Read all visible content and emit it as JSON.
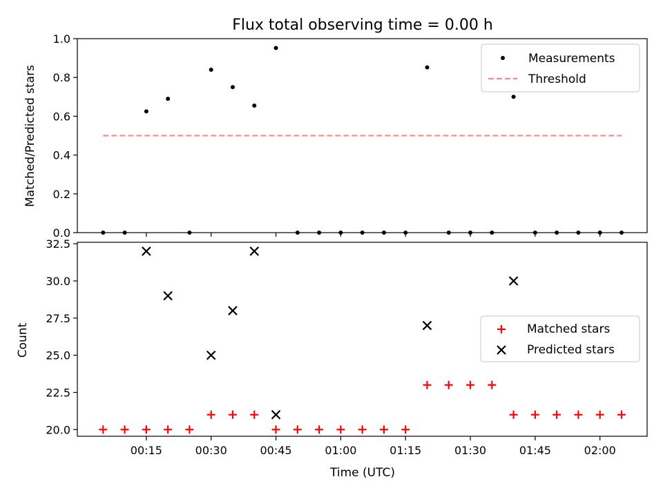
{
  "chart_data": [
    {
      "type": "scatter",
      "title": "Flux total observing time = 0.00 h",
      "xlabel": "",
      "ylabel": "Matched/Predicted stars",
      "ylim": [
        0,
        1.0
      ],
      "yticks": [
        "0.0",
        "0.2",
        "0.4",
        "0.6",
        "0.8",
        "1.0"
      ],
      "x": [
        "00:05",
        "00:10",
        "00:15",
        "00:20",
        "00:25",
        "00:30",
        "00:35",
        "00:40",
        "00:45",
        "00:50",
        "00:55",
        "01:00",
        "01:05",
        "01:10",
        "01:15",
        "01:20",
        "01:25",
        "01:30",
        "01:35",
        "01:40",
        "01:45",
        "01:50",
        "01:55",
        "02:00",
        "02:05"
      ],
      "series": [
        {
          "name": "Measurements",
          "color": "#000000",
          "marker": "dot",
          "values": [
            0,
            0,
            0.625,
            0.69,
            0,
            0.84,
            0.75,
            0.655,
            0.952,
            0,
            0,
            0,
            0,
            0,
            0,
            0.852,
            0,
            0,
            0,
            0.7,
            0,
            0,
            0,
            0,
            0
          ]
        },
        {
          "name": "Threshold",
          "color": "#ff7f7f",
          "style": "dashed",
          "value": 0.5,
          "x_range": [
            "00:05",
            "02:05"
          ]
        }
      ],
      "legend": "top-right"
    },
    {
      "type": "scatter",
      "title": "",
      "xlabel": "Time (UTC)",
      "ylabel": "Count",
      "ylim": [
        19.55,
        32.6
      ],
      "yticks": [
        "20.0",
        "22.5",
        "25.0",
        "27.5",
        "30.0",
        "32.5"
      ],
      "xticks": [
        "00:15",
        "00:30",
        "00:45",
        "01:00",
        "01:15",
        "01:30",
        "01:45",
        "02:00"
      ],
      "x": [
        "00:05",
        "00:10",
        "00:15",
        "00:20",
        "00:25",
        "00:30",
        "00:35",
        "00:40",
        "00:45",
        "00:50",
        "00:55",
        "01:00",
        "01:05",
        "01:10",
        "01:15",
        "01:20",
        "01:25",
        "01:30",
        "01:35",
        "01:40",
        "01:45",
        "01:50",
        "01:55",
        "02:00",
        "02:05"
      ],
      "series": [
        {
          "name": "Matched stars",
          "color": "#ff0000",
          "marker": "plus",
          "values": [
            20,
            20,
            20,
            20,
            20,
            21,
            21,
            21,
            20,
            20,
            20,
            20,
            20,
            20,
            20,
            23,
            23,
            23,
            23,
            21,
            21,
            21,
            21,
            21,
            21
          ]
        },
        {
          "name": "Predicted stars",
          "color": "#000000",
          "marker": "x",
          "points": [
            [
              "00:15",
              32
            ],
            [
              "00:20",
              29
            ],
            [
              "00:30",
              25
            ],
            [
              "00:35",
              28
            ],
            [
              "00:40",
              32
            ],
            [
              "00:45",
              21
            ],
            [
              "01:20",
              27
            ],
            [
              "01:40",
              30
            ]
          ]
        }
      ],
      "legend": "center-right"
    }
  ]
}
